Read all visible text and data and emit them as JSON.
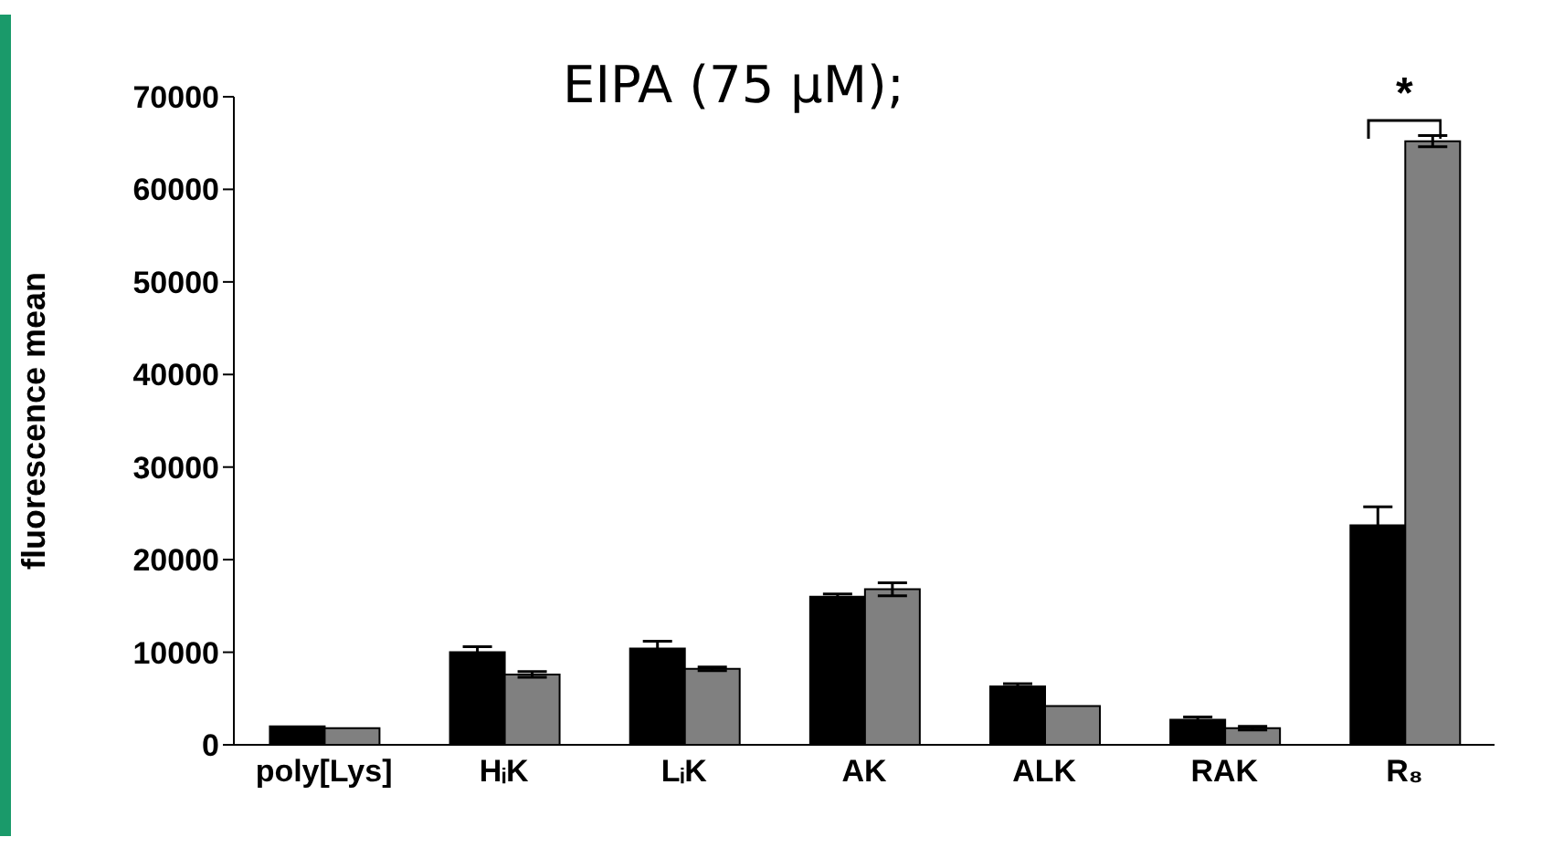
{
  "chart_data": {
    "type": "bar",
    "ylabel": "fluorescence mean",
    "categories": [
      "poly[Lys]",
      "HᵢK",
      "LᵢK",
      "AK",
      "ALK",
      "RAK",
      "R₈"
    ],
    "series": [
      {
        "color": "#000000",
        "values": [
          2000,
          10000,
          10400,
          16000,
          6300,
          2700,
          23700
        ],
        "errors": [
          null,
          600,
          800,
          300,
          300,
          300,
          2000
        ]
      },
      {
        "color": "#808080",
        "values": [
          1800,
          7600,
          8200,
          16800,
          4200,
          1800,
          65200
        ],
        "errors": [
          null,
          300,
          200,
          700,
          null,
          200,
          600
        ]
      }
    ],
    "ylim": [
      0,
      70000
    ],
    "yticks": [
      0,
      10000,
      20000,
      30000,
      40000,
      50000,
      60000,
      70000
    ],
    "annotations": [
      "EIPA  (75 μM);",
      "*"
    ]
  }
}
